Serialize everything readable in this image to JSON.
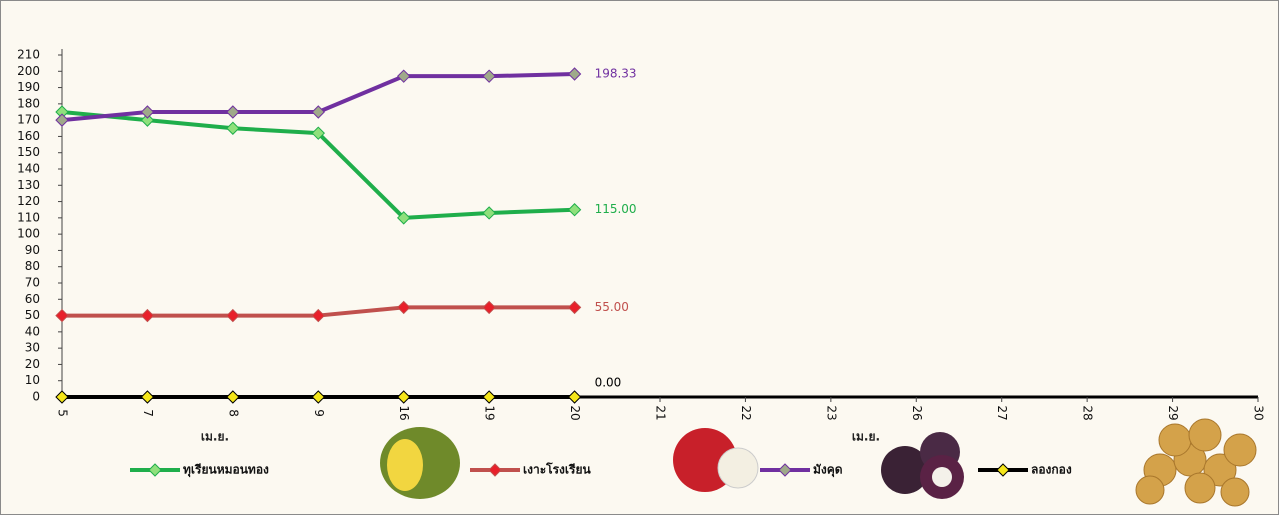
{
  "chart_data": {
    "type": "line",
    "categories": [
      "5",
      "7",
      "8",
      "9",
      "16",
      "19",
      "20",
      "21",
      "22",
      "23",
      "26",
      "27",
      "28",
      "29",
      "30"
    ],
    "x_group_labels": [
      "เม.ย.",
      "เม.ย."
    ],
    "ylim": [
      0,
      210
    ],
    "yticks": [
      0,
      10,
      20,
      30,
      40,
      50,
      60,
      70,
      80,
      90,
      100,
      110,
      120,
      130,
      140,
      150,
      160,
      170,
      180,
      190,
      200,
      210
    ],
    "legend": "bottom",
    "series": [
      {
        "name": "ทุเรียนหมอนทอง",
        "color": "#1fae4b",
        "marker_color": "#8fe07c",
        "values": [
          175,
          170,
          165,
          162,
          110,
          113,
          115,
          null,
          null,
          null,
          null,
          null,
          null,
          null,
          null
        ],
        "value_labels": [
          null,
          null,
          null,
          null,
          null,
          null,
          "115.00",
          null,
          null,
          null,
          null,
          null,
          null,
          null,
          null
        ]
      },
      {
        "name": "เงาะโรงเรียน",
        "color": "#c0504d",
        "marker_color": "#e8202a",
        "values": [
          50,
          50,
          50,
          50,
          55,
          55,
          55,
          null,
          null,
          null,
          null,
          null,
          null,
          null,
          null
        ],
        "value_labels": [
          null,
          null,
          null,
          null,
          null,
          null,
          "55.00",
          null,
          null,
          null,
          null,
          null,
          null,
          null,
          null
        ]
      },
      {
        "name": "มังคุด",
        "color": "#7030a0",
        "marker_color": "#9fa98a",
        "values": [
          170,
          175,
          175,
          175,
          197,
          197,
          198.33,
          null,
          null,
          null,
          null,
          null,
          null,
          null,
          null
        ],
        "value_labels": [
          null,
          null,
          null,
          null,
          null,
          null,
          "198.33",
          null,
          null,
          null,
          null,
          null,
          null,
          null,
          null
        ]
      },
      {
        "name": "ลองกอง",
        "color": "#000000",
        "marker_color": "#f5e61a",
        "values": [
          0,
          0,
          0,
          0,
          0,
          0,
          0,
          null,
          null,
          null,
          null,
          null,
          null,
          null,
          null
        ],
        "value_labels": [
          null,
          null,
          null,
          null,
          null,
          null,
          "0.00",
          null,
          null,
          null,
          null,
          null,
          null,
          null,
          null
        ]
      }
    ]
  }
}
